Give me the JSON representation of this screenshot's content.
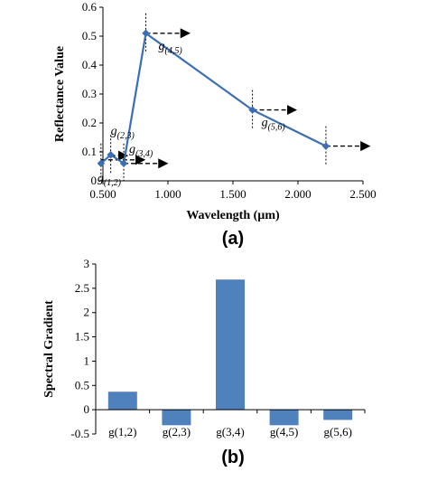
{
  "chart_data": [
    {
      "panel_label": "(a)",
      "type": "line",
      "xlabel": "Wavelength (µm)",
      "ylabel": "Reflectance Value",
      "xlim": [
        0.5,
        2.5
      ],
      "ylim": [
        0,
        0.6
      ],
      "x_ticks": [
        "0.500",
        "1.000",
        "1.500",
        "2.000",
        "2.500"
      ],
      "x_tick_values": [
        0.5,
        1.0,
        1.5,
        2.0,
        2.5
      ],
      "y_ticks": [
        "0",
        "0.1",
        "0.2",
        "0.3",
        "0.4",
        "0.5",
        "0.6"
      ],
      "y_tick_values": [
        0,
        0.1,
        0.2,
        0.3,
        0.4,
        0.5,
        0.6
      ],
      "grid": false,
      "color": "#3b6eb2",
      "series": [
        {
          "x": [
            0.485,
            0.56,
            0.66,
            0.83,
            1.65,
            2.215
          ],
          "y": [
            0.06,
            0.09,
            0.06,
            0.51,
            0.245,
            0.12
          ]
        }
      ],
      "annotations": [
        {
          "base": "g",
          "sub": "(1,2)",
          "x": 0.485,
          "y": 0.06
        },
        {
          "base": "g",
          "sub": "(2,3)",
          "x": 0.56,
          "y": 0.09
        },
        {
          "base": "g",
          "sub": "(3,4)",
          "x": 0.66,
          "y": 0.06
        },
        {
          "base": "g",
          "sub": "(4,5)",
          "x": 0.83,
          "y": 0.51
        },
        {
          "base": "g",
          "sub": "(5,6)",
          "x": 1.65,
          "y": 0.245
        }
      ]
    },
    {
      "panel_label": "(b)",
      "type": "bar",
      "ylabel": "Spectral Gradient",
      "xlabel": "",
      "categories": [
        "g(1,2)",
        "g(2,3)",
        "g(3,4)",
        "g(4,5)",
        "g(5,6)"
      ],
      "values": [
        0.37,
        -0.32,
        2.68,
        -0.32,
        -0.21
      ],
      "ylim": [
        -0.5,
        3
      ],
      "y_ticks": [
        "-0.5",
        "0",
        "0.5",
        "1",
        "1.5",
        "2",
        "2.5",
        "3"
      ],
      "y_tick_values": [
        -0.5,
        0,
        0.5,
        1,
        1.5,
        2,
        2.5,
        3
      ],
      "grid": false,
      "color": "#4f81bd"
    }
  ]
}
